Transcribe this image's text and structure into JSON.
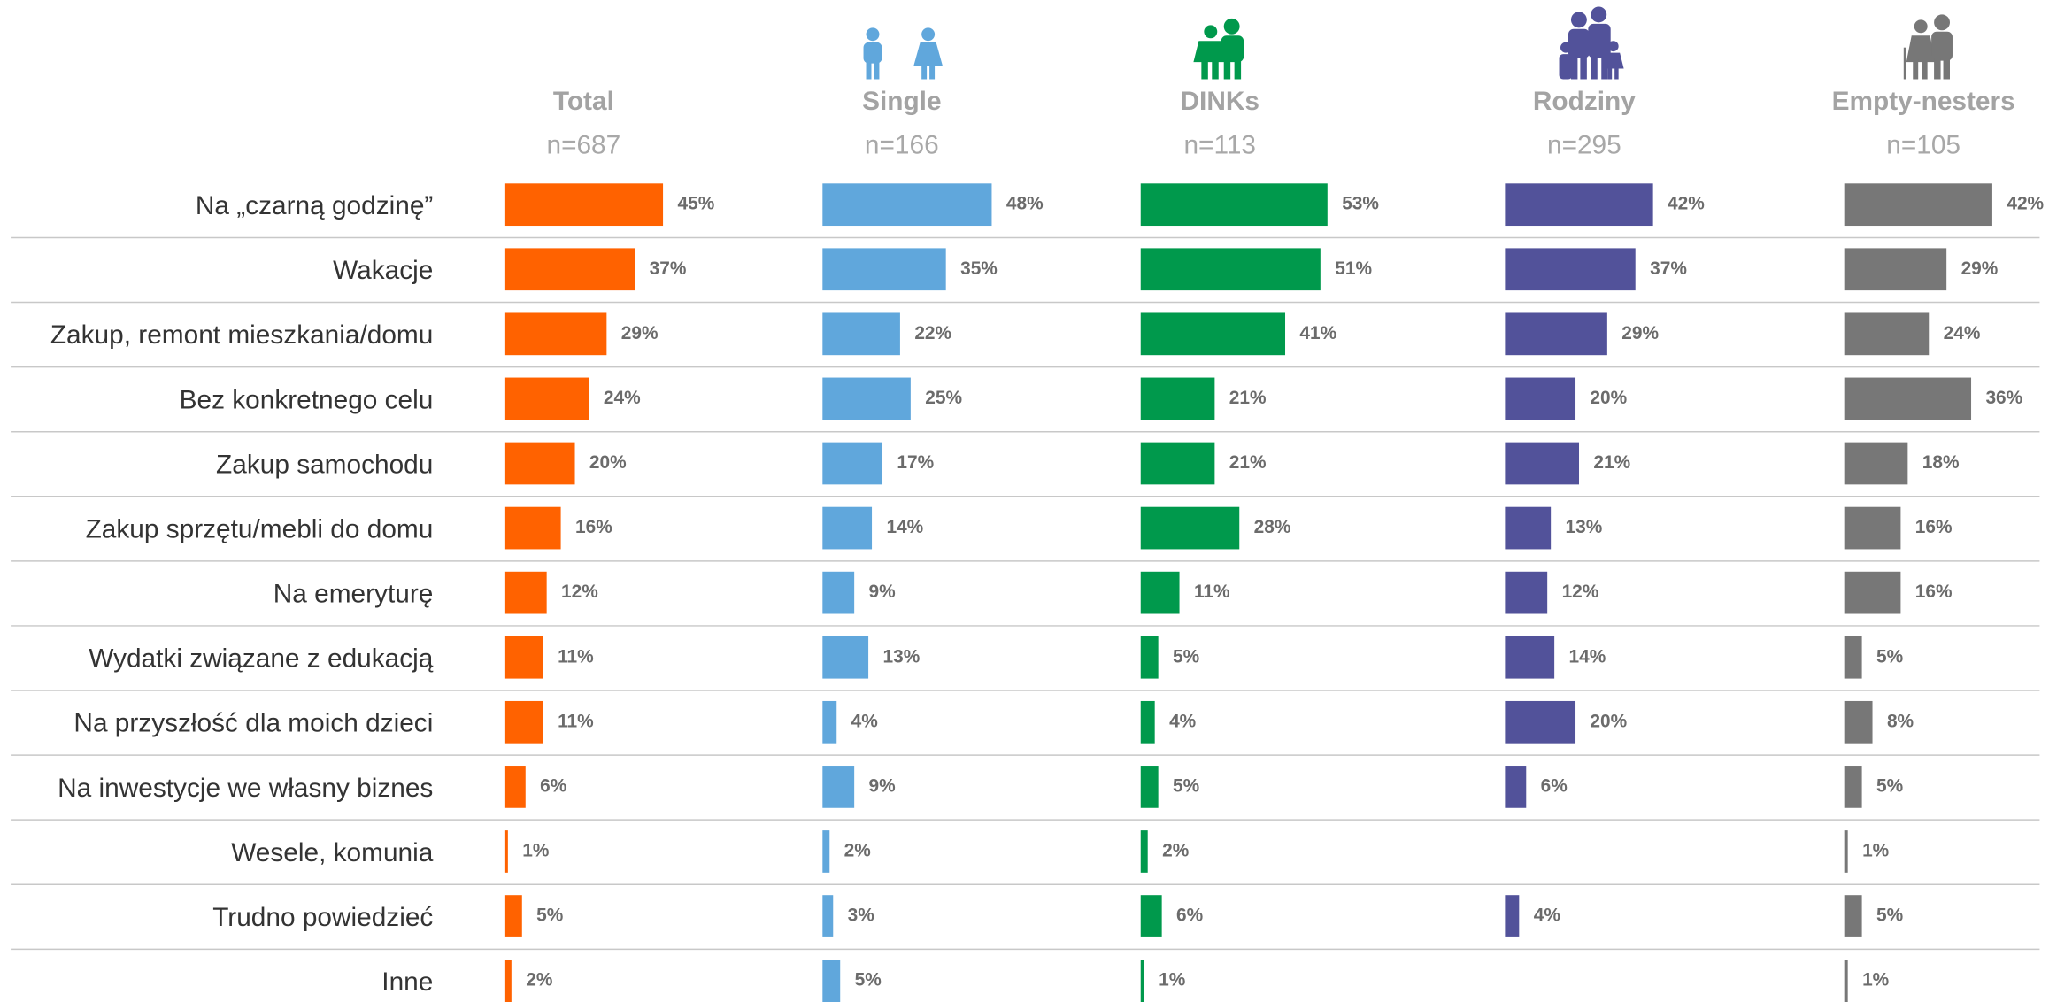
{
  "chart_data": {
    "type": "bar",
    "orientation": "horizontal",
    "categories": [
      "Na „czarną godzinę”",
      "Wakacje",
      "Zakup, remont mieszkania/domu",
      "Bez konkretnego celu",
      "Zakup samochodu",
      "Zakup sprzętu/mebli do domu",
      "Na emeryturę",
      "Wydatki związane z edukacją",
      "Na przyszłość dla moich dzieci",
      "Na inwestycje we własny biznes",
      "Wesele, komunia",
      "Trudno powiedzieć",
      "Inne"
    ],
    "series": [
      {
        "name": "Total",
        "n": "n=687",
        "color": "#ff6200",
        "values": [
          45,
          37,
          29,
          24,
          20,
          16,
          12,
          11,
          11,
          6,
          1,
          5,
          2
        ],
        "value_labels": [
          "45%",
          "37%",
          "29%",
          "24%",
          "20%",
          "16%",
          "12%",
          "11%",
          "11%",
          "6%",
          "1%",
          "5%",
          "2%"
        ]
      },
      {
        "name": "Single",
        "n": "n=166",
        "color": "#60a7dc",
        "values": [
          48,
          35,
          22,
          25,
          17,
          14,
          9,
          13,
          4,
          9,
          2,
          3,
          5
        ],
        "value_labels": [
          "48%",
          "35%",
          "22%",
          "25%",
          "17%",
          "14%",
          "9%",
          "13%",
          "4%",
          "9%",
          "2%",
          "3%",
          "5%"
        ]
      },
      {
        "name": "DINKs",
        "n": "n=113",
        "color": "#00994c",
        "values": [
          53,
          51,
          41,
          21,
          21,
          28,
          11,
          5,
          4,
          5,
          2,
          6,
          1
        ],
        "value_labels": [
          "53%",
          "51%",
          "41%",
          "21%",
          "21%",
          "28%",
          "11%",
          "5%",
          "4%",
          "5%",
          "2%",
          "6%",
          "1%"
        ]
      },
      {
        "name": "Rodziny",
        "n": "n=295",
        "color": "#52529a",
        "values": [
          42,
          37,
          29,
          20,
          21,
          13,
          12,
          14,
          20,
          6,
          null,
          4,
          null
        ],
        "value_labels": [
          "42%",
          "37%",
          "29%",
          "20%",
          "21%",
          "13%",
          "12%",
          "14%",
          "20%",
          "6%",
          null,
          "4%",
          null
        ]
      },
      {
        "name": "Empty-nesters",
        "n": "n=105",
        "color": "#777777",
        "values": [
          42,
          29,
          24,
          36,
          18,
          16,
          16,
          5,
          8,
          5,
          1,
          5,
          1
        ],
        "value_labels": [
          "42%",
          "29%",
          "24%",
          "36%",
          "18%",
          "16%",
          "16%",
          "5%",
          "8%",
          "5%",
          "1%",
          "5%",
          "1%"
        ]
      }
    ]
  }
}
